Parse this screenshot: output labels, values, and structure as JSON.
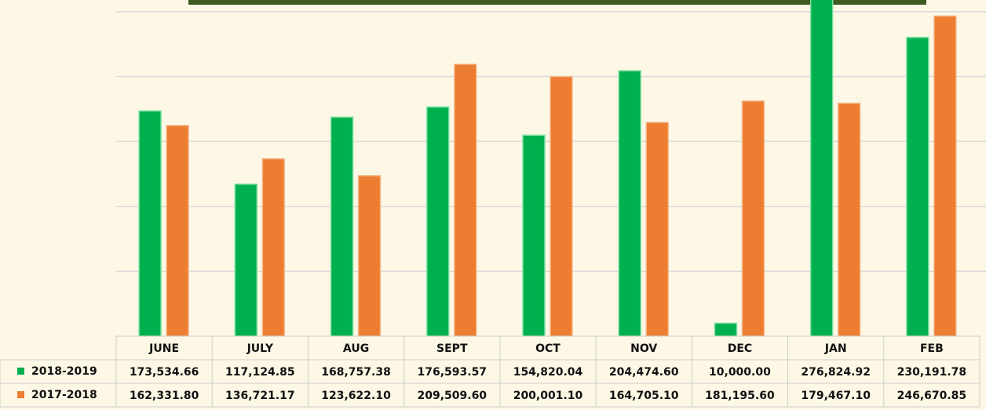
{
  "chart_data": {
    "type": "bar",
    "categories": [
      "JUNE",
      "JULY",
      "AUG",
      "SEPT",
      "OCT",
      "NOV",
      "DEC",
      "JAN",
      "FEB"
    ],
    "series": [
      {
        "name": "2018-2019",
        "color": "#00b04f",
        "values": [
          173534.66,
          117124.85,
          168757.38,
          176593.57,
          154820.04,
          204474.6,
          10000.0,
          276824.92,
          230191.78
        ],
        "value_labels": [
          "173,534.66",
          "117,124.85",
          "168,757.38",
          "176,593.57",
          "154,820.04",
          "204,474.60",
          "10,000.00",
          "276,824.92",
          "230,191.78"
        ]
      },
      {
        "name": "2017-2018",
        "color": "#ed7d31",
        "values": [
          162331.8,
          136721.17,
          123622.1,
          209509.6,
          200001.1,
          164705.1,
          181195.6,
          179467.1,
          246670.85
        ],
        "value_labels": [
          "162,331.80",
          "136,721.17",
          "123,622.10",
          "209,509.60",
          "200,001.10",
          "164,705.10",
          "181,195.60",
          "179,467.10",
          "246,670.85"
        ]
      }
    ],
    "ylim": [
      0,
      259000
    ],
    "yticks": [
      50000,
      100000,
      150000,
      200000,
      250000
    ],
    "grid": true
  }
}
